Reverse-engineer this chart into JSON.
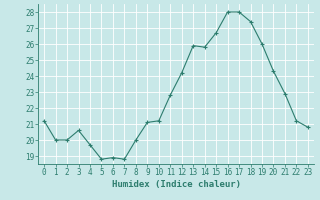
{
  "x": [
    0,
    1,
    2,
    3,
    4,
    5,
    6,
    7,
    8,
    9,
    10,
    11,
    12,
    13,
    14,
    15,
    16,
    17,
    18,
    19,
    20,
    21,
    22,
    23
  ],
  "y": [
    21.2,
    20.0,
    20.0,
    20.6,
    19.7,
    18.8,
    18.9,
    18.8,
    20.0,
    21.1,
    21.2,
    22.8,
    24.2,
    25.9,
    25.8,
    26.7,
    28.0,
    28.0,
    27.4,
    26.0,
    24.3,
    22.9,
    21.2,
    20.8
  ],
  "line_color": "#2d7d6e",
  "marker": "+",
  "marker_size": 3,
  "bg_color": "#c8e8e8",
  "grid_color": "#aacccc",
  "xlabel": "Humidex (Indice chaleur)",
  "ylim": [
    18.5,
    28.5
  ],
  "xlim": [
    -0.5,
    23.5
  ],
  "yticks": [
    19,
    20,
    21,
    22,
    23,
    24,
    25,
    26,
    27,
    28
  ],
  "xticks": [
    0,
    1,
    2,
    3,
    4,
    5,
    6,
    7,
    8,
    9,
    10,
    11,
    12,
    13,
    14,
    15,
    16,
    17,
    18,
    19,
    20,
    21,
    22,
    23
  ],
  "tick_fontsize": 5.5,
  "xlabel_fontsize": 6.5,
  "line_width": 0.8,
  "tick_color": "#2d7d6e",
  "label_color": "#2d7d6e",
  "spine_color": "#2d7d6e"
}
